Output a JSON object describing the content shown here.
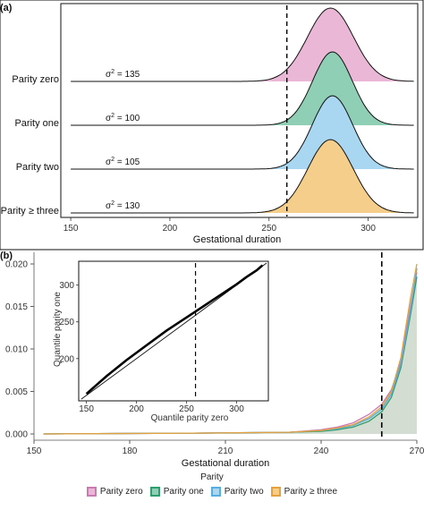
{
  "chart_data": [
    {
      "panel": "(a)",
      "type": "area",
      "subtype": "ridgeline-density",
      "xlabel": "Gestational duration",
      "xlim": [
        145,
        325
      ],
      "xticks": [
        150,
        200,
        250,
        300
      ],
      "vline": 259,
      "series": [
        {
          "name": "Parity zero",
          "label": "Parity zero",
          "variance": "135",
          "mean": 281,
          "sd": 11.6
        },
        {
          "name": "Parity one",
          "label": "Parity one",
          "variance": "100",
          "mean": 282,
          "sd": 10.0
        },
        {
          "name": "Parity two",
          "label": "Parity two",
          "variance": "105",
          "mean": 282,
          "sd": 10.2
        },
        {
          "name": "Parity ≥ three",
          "label": "Parity ≥ three",
          "variance": "130",
          "mean": 281,
          "sd": 11.4
        }
      ]
    },
    {
      "panel": "(b)",
      "type": "line",
      "subtype": "cumulative-hazard",
      "xlabel": "Gestational duration",
      "xlim": [
        150,
        270
      ],
      "ylim": [
        0,
        0.02
      ],
      "xticks": [
        150,
        180,
        210,
        240,
        270
      ],
      "yticks": [
        "0.000",
        "0.005",
        "0.010",
        "0.015",
        "0.020"
      ],
      "vline": 259,
      "series": [
        {
          "name": "Parity zero",
          "x": [
            153,
            200,
            230,
            240,
            245,
            250,
            255,
            259,
            262,
            265,
            268,
            270
          ],
          "y": [
            0,
            0.0001,
            0.0002,
            0.0005,
            0.0008,
            0.0013,
            0.0023,
            0.0035,
            0.0052,
            0.0085,
            0.015,
            0.019
          ]
        },
        {
          "name": "Parity one",
          "x": [
            153,
            200,
            230,
            240,
            245,
            250,
            255,
            259,
            262,
            265,
            268,
            270
          ],
          "y": [
            0,
            0.0001,
            0.0002,
            0.0003,
            0.0005,
            0.0008,
            0.0015,
            0.0026,
            0.0043,
            0.0078,
            0.014,
            0.0185
          ]
        },
        {
          "name": "Parity two",
          "x": [
            153,
            200,
            230,
            240,
            245,
            250,
            255,
            259,
            262,
            265,
            268,
            270
          ],
          "y": [
            0,
            0.0001,
            0.0002,
            0.0004,
            0.0006,
            0.001,
            0.0018,
            0.0029,
            0.0047,
            0.0082,
            0.0145,
            0.0195
          ]
        },
        {
          "name": "Parity ≥ three",
          "x": [
            153,
            200,
            230,
            240,
            245,
            250,
            255,
            259,
            262,
            265,
            268,
            270
          ],
          "y": [
            0,
            0.0001,
            0.0002,
            0.0004,
            0.0007,
            0.0011,
            0.002,
            0.0032,
            0.005,
            0.009,
            0.016,
            0.02
          ]
        }
      ],
      "inset": {
        "type": "scatter",
        "subtype": "qq-plot",
        "xlabel": "Quantile parity zero",
        "ylabel": "Quantile parity one",
        "xlim": [
          145,
          330
        ],
        "ylim": [
          145,
          330
        ],
        "xticks": [
          150,
          200,
          250,
          300
        ],
        "yticks": [
          200,
          250,
          300
        ],
        "vline": 259,
        "x": [
          150,
          170,
          190,
          210,
          230,
          250,
          260,
          270,
          280,
          290,
          300,
          310,
          320,
          326
        ],
        "y": [
          152,
          176,
          198,
          218,
          238,
          256,
          265,
          274,
          283,
          292,
          301,
          311,
          320,
          327
        ]
      }
    }
  ],
  "legend": {
    "title": "Parity",
    "items": [
      {
        "label": "Parity zero",
        "fill": "#EAB8D6",
        "stroke": "#C97AB0"
      },
      {
        "label": "Parity one",
        "fill": "#8ECFB6",
        "stroke": "#2E9E6E"
      },
      {
        "label": "Parity two",
        "fill": "#A9D6F0",
        "stroke": "#5AAEDF"
      },
      {
        "label": "Parity ≥ three",
        "fill": "#F4CE8A",
        "stroke": "#E7A13C"
      }
    ]
  }
}
